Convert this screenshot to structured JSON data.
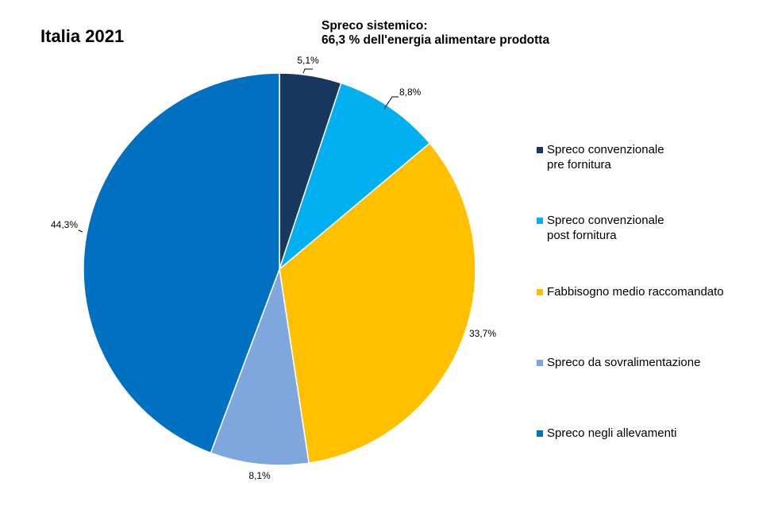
{
  "chart_data": {
    "type": "pie",
    "title": "Italia 2021",
    "subtitle": [
      "Spreco sistemico:",
      "66,3 % dell'energia alimentare prodotta"
    ],
    "slices": [
      {
        "label": "Spreco convenzionale\npre fornitura",
        "value": 5.1,
        "value_label": "5,1%",
        "color": "#17375E"
      },
      {
        "label": "Spreco convenzionale\npost fornitura",
        "value": 8.8,
        "value_label": "8,8%",
        "color": "#00B0F0"
      },
      {
        "label": "Fabbisogno medio raccomandato",
        "value": 33.7,
        "value_label": "33,7%",
        "color": "#FFC000"
      },
      {
        "label": "Spreco da sovralimentazione",
        "value": 8.1,
        "value_label": "8,1%",
        "color": "#7FA7DE"
      },
      {
        "label": "Spreco negli allevamenti",
        "value": 44.3,
        "value_label": "44,3%",
        "color": "#0070C0"
      }
    ],
    "start_angle": "12 o'clock",
    "direction": "clockwise",
    "legend_position": "right"
  }
}
